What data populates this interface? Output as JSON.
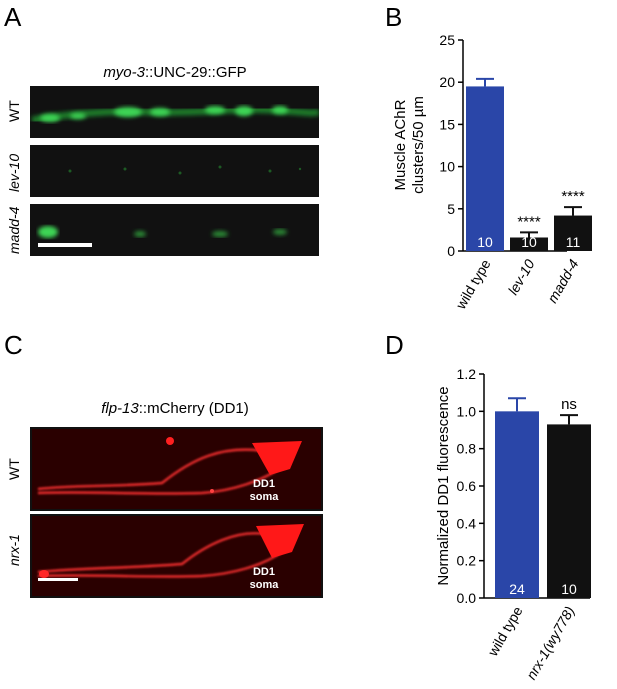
{
  "panels": {
    "A": {
      "letter": "A",
      "title_italic": "myo-3",
      "title_rest": "::UNC-29::GFP",
      "rows": [
        {
          "label": "WT",
          "italic": false
        },
        {
          "label": "lev-10",
          "italic": true
        },
        {
          "label": "madd-4",
          "italic": true
        }
      ]
    },
    "B": {
      "letter": "B"
    },
    "C": {
      "letter": "C",
      "title_italic": "flp-13",
      "title_rest": "::mCherry (DD1)",
      "rows": [
        {
          "label": "WT",
          "italic": false
        },
        {
          "label": "nrx-1",
          "italic": true
        }
      ],
      "soma_line1": "DD1",
      "soma_line2": "soma"
    },
    "D": {
      "letter": "D"
    }
  },
  "chart_data": [
    {
      "type": "bar",
      "panel": "B",
      "categories": [
        "wild type",
        "lev-10",
        "madd-4"
      ],
      "category_italic": [
        false,
        true,
        true
      ],
      "values": [
        19.5,
        1.6,
        4.2
      ],
      "errors": [
        0.9,
        0.6,
        1.0
      ],
      "bar_colors": [
        "#2a46a8",
        "#111111",
        "#111111"
      ],
      "n_labels": [
        "10",
        "10",
        "11"
      ],
      "significance": [
        "",
        "****",
        "****"
      ],
      "ylabel_line1": "Muscle AChR",
      "ylabel_line2": "clusters/50 µm",
      "ylim": [
        0,
        25
      ],
      "yticks": [
        "0",
        "5",
        "10",
        "15",
        "20",
        "25"
      ],
      "grid": false
    },
    {
      "type": "bar",
      "panel": "D",
      "categories": [
        "wild type",
        "nrx-1(wy778)"
      ],
      "category_italic": [
        false,
        true
      ],
      "values": [
        1.0,
        0.93
      ],
      "errors": [
        0.07,
        0.05
      ],
      "bar_colors": [
        "#2a46a8",
        "#111111"
      ],
      "n_labels": [
        "24",
        "10"
      ],
      "significance": [
        "",
        "ns"
      ],
      "ylabel_line1": "Normalized DD1 fluorescence",
      "ylim": [
        0,
        1.2
      ],
      "yticks": [
        "0.0",
        "0.2",
        "0.4",
        "0.6",
        "0.8",
        "1.0",
        "1.2"
      ],
      "grid": false
    }
  ]
}
